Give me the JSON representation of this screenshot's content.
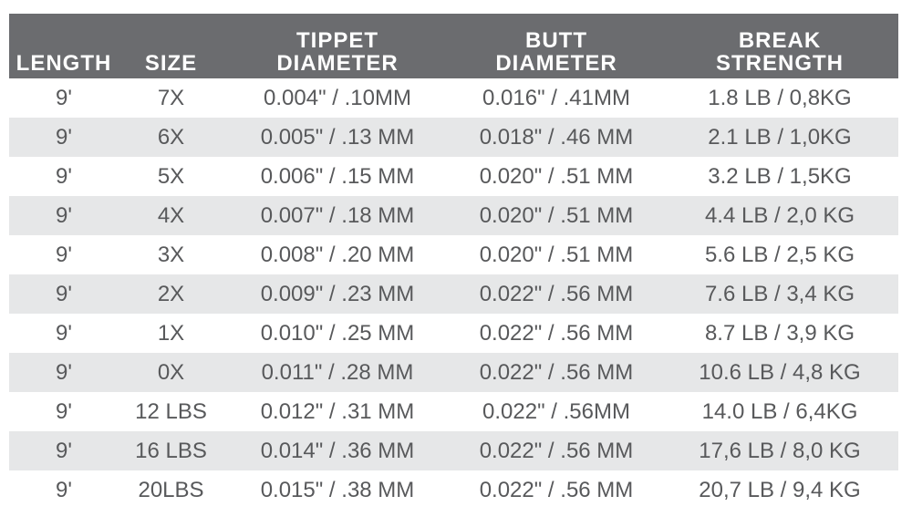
{
  "headers": [
    {
      "line1": "",
      "line2": "LENGTH"
    },
    {
      "line1": "",
      "line2": "SIZE"
    },
    {
      "line1": "TIPPET",
      "line2": "DIAMETER"
    },
    {
      "line1": "BUTT",
      "line2": "DIAMETER"
    },
    {
      "line1": "BREAK",
      "line2": "STRENGTH"
    }
  ],
  "rows": [
    [
      "9'",
      "7X",
      "0.004\" / .10MM",
      "0.016\" / .41MM",
      "1.8 LB / 0,8KG"
    ],
    [
      "9'",
      "6X",
      "0.005\" / .13 MM",
      "0.018\" / .46 MM",
      "2.1 LB / 1,0KG"
    ],
    [
      "9'",
      "5X",
      "0.006\" / .15 MM",
      "0.020\" / .51 MM",
      "3.2 LB / 1,5KG"
    ],
    [
      "9'",
      "4X",
      "0.007\" / .18 MM",
      "0.020\" / .51 MM",
      "4.4 LB / 2,0 KG"
    ],
    [
      "9'",
      "3X",
      "0.008\" / .20 MM",
      "0.020\" / .51 MM",
      "5.6 LB / 2,5 KG"
    ],
    [
      "9'",
      "2X",
      "0.009\" / .23 MM",
      "0.022\" / .56 MM",
      "7.6 LB / 3,4 KG"
    ],
    [
      "9'",
      "1X",
      "0.010\" / .25 MM",
      "0.022\" / .56 MM",
      "8.7 LB / 3,9 KG"
    ],
    [
      "9'",
      "0X",
      "0.011\" / .28 MM",
      "0.022\" / .56 MM",
      "10.6 LB / 4,8 KG"
    ],
    [
      "9'",
      "12 LBS",
      "0.012\" / .31 MM",
      "0.022\" / .56MM",
      "14.0 LB / 6,4KG"
    ],
    [
      "9'",
      "16 LBS",
      "0.014\" / .36 MM",
      "0.022\" / .56 MM",
      "17,6 LB / 8,0 KG"
    ],
    [
      "9'",
      "20LBS",
      "0.015\" / .38 MM",
      "0.022\" / .56 MM",
      "20,7 LB / 9,4 KG"
    ]
  ],
  "colors": {
    "header_bg": "#6b6c6f",
    "alt_row_bg": "#e6e7e8",
    "text": "#58595b"
  }
}
